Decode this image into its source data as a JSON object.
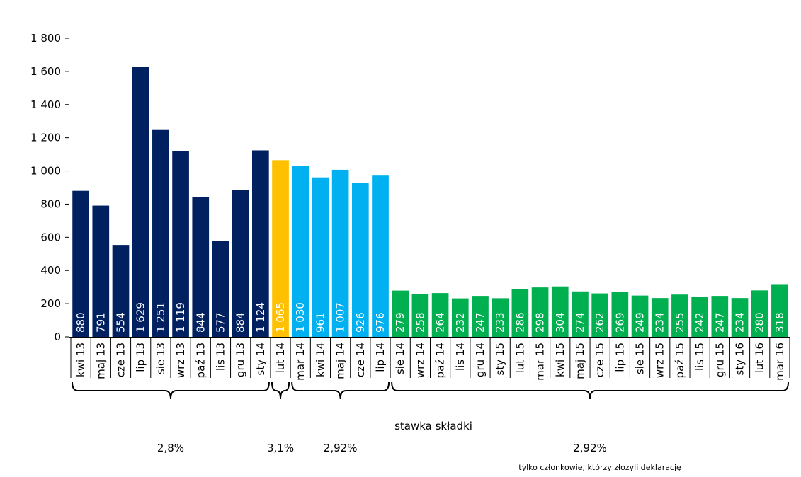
{
  "chart_data": {
    "type": "bar",
    "categories": [
      "kwi 13",
      "maj 13",
      "cze 13",
      "lip 13",
      "sie 13",
      "wrz 13",
      "paź 13",
      "lis 13",
      "gru 13",
      "sty 14",
      "lut 14",
      "mar 14",
      "kwi 14",
      "maj 14",
      "cze 14",
      "lip 14",
      "sie 14",
      "wrz 14",
      "paź 14",
      "lis 14",
      "gru 14",
      "sty 15",
      "lut 15",
      "mar 15",
      "kwi 15",
      "maj 15",
      "cze 15",
      "lip 15",
      "sie 15",
      "wrz 15",
      "paź 15",
      "lis 15",
      "gru 15",
      "sty 16",
      "lut 16",
      "mar 16"
    ],
    "series": [
      {
        "name": "2,8%",
        "color": "#002060",
        "values": [
          880,
          791,
          554,
          1629,
          1251,
          1119,
          844,
          577,
          884,
          1124,
          null,
          null,
          null,
          null,
          null,
          null,
          null,
          null,
          null,
          null,
          null,
          null,
          null,
          null,
          null,
          null,
          null,
          null,
          null,
          null,
          null,
          null,
          null,
          null,
          null,
          null
        ],
        "value_labels": [
          "880",
          "791",
          "554",
          "1 629",
          "1 251",
          "1 119",
          "844",
          "577",
          "884",
          "1 124",
          null,
          null,
          null,
          null,
          null,
          null,
          null,
          null,
          null,
          null,
          null,
          null,
          null,
          null,
          null,
          null,
          null,
          null,
          null,
          null,
          null,
          null,
          null,
          null,
          null,
          null
        ]
      },
      {
        "name": "3,1%",
        "color": "#ffc000",
        "values": [
          null,
          null,
          null,
          null,
          null,
          null,
          null,
          null,
          null,
          null,
          1065,
          null,
          null,
          null,
          null,
          null,
          null,
          null,
          null,
          null,
          null,
          null,
          null,
          null,
          null,
          null,
          null,
          null,
          null,
          null,
          null,
          null,
          null,
          null,
          null,
          null
        ],
        "value_labels": [
          null,
          null,
          null,
          null,
          null,
          null,
          null,
          null,
          null,
          null,
          "1 065",
          null,
          null,
          null,
          null,
          null,
          null,
          null,
          null,
          null,
          null,
          null,
          null,
          null,
          null,
          null,
          null,
          null,
          null,
          null,
          null,
          null,
          null,
          null,
          null,
          null
        ]
      },
      {
        "name": "2,92%",
        "color": "#00b0f0",
        "values": [
          null,
          null,
          null,
          null,
          null,
          null,
          null,
          null,
          null,
          null,
          null,
          1030,
          961,
          1007,
          926,
          976,
          null,
          null,
          null,
          null,
          null,
          null,
          null,
          null,
          null,
          null,
          null,
          null,
          null,
          null,
          null,
          null,
          null,
          null,
          null,
          null
        ],
        "value_labels": [
          null,
          null,
          null,
          null,
          null,
          null,
          null,
          null,
          null,
          null,
          null,
          "1 030",
          "961",
          "1 007",
          "926",
          "976",
          null,
          null,
          null,
          null,
          null,
          null,
          null,
          null,
          null,
          null,
          null,
          null,
          null,
          null,
          null,
          null,
          null,
          null,
          null,
          null
        ]
      },
      {
        "name": "2,92%",
        "note": "tylko członkowie, którzy złozyli deklarację",
        "color": "#00b050",
        "values": [
          null,
          null,
          null,
          null,
          null,
          null,
          null,
          null,
          null,
          null,
          null,
          null,
          null,
          null,
          null,
          null,
          279,
          258,
          264,
          232,
          247,
          233,
          286,
          298,
          304,
          274,
          262,
          269,
          249,
          234,
          255,
          242,
          247,
          234,
          280,
          318
        ],
        "value_labels": [
          null,
          null,
          null,
          null,
          null,
          null,
          null,
          null,
          null,
          null,
          null,
          null,
          null,
          null,
          null,
          null,
          "279",
          "258",
          "264",
          "232",
          "247",
          "233",
          "286",
          "298",
          "304",
          "274",
          "262",
          "269",
          "249",
          "234",
          "255",
          "242",
          "247",
          "234",
          "280",
          "318"
        ]
      }
    ],
    "x_label": "stawka składki",
    "ylim": [
      0,
      1800
    ],
    "yticks": [
      0,
      200,
      400,
      600,
      800,
      {
        "value": 1000,
        "label": "1 000"
      },
      {
        "value": 1200,
        "label": "1 200"
      },
      {
        "value": 1400,
        "label": "1 400"
      },
      {
        "value": 1600,
        "label": "1 600"
      },
      {
        "value": 1800,
        "label": "1 800"
      }
    ],
    "grid": false
  }
}
